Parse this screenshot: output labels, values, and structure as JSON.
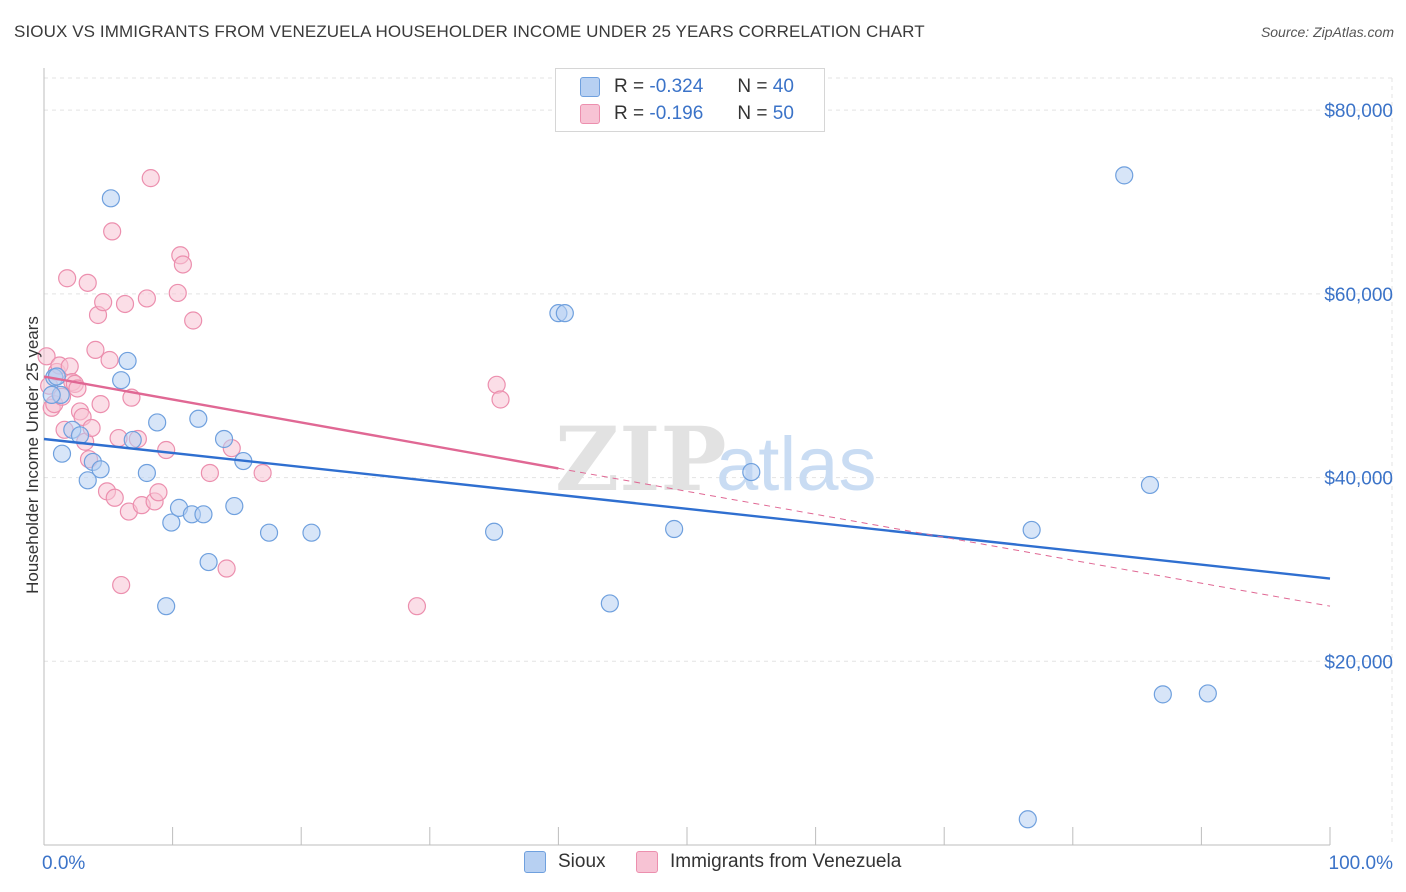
{
  "title": "SIOUX VS IMMIGRANTS FROM VENEZUELA HOUSEHOLDER INCOME UNDER 25 YEARS CORRELATION CHART",
  "source": "Source: ZipAtlas.com",
  "watermark": {
    "zip": "ZIP",
    "atlas": "atlas"
  },
  "legend": {
    "rows": [
      {
        "r_label": "R =",
        "r_value": "-0.324",
        "n_label": "N =",
        "n_value": "40"
      },
      {
        "r_label": "R =",
        "r_value": "-0.196",
        "n_label": "N =",
        "n_value": "50"
      }
    ]
  },
  "chart_data": {
    "type": "scatter",
    "title": "SIOUX VS IMMIGRANTS FROM VENEZUELA HOUSEHOLDER INCOME UNDER 25 YEARS CORRELATION CHART",
    "xlabel": "",
    "ylabel": "Householder Income Under 25 years",
    "xlim": [
      0,
      100
    ],
    "ylim": [
      0,
      83500
    ],
    "x_tick_labels": [
      "0.0%",
      "100.0%"
    ],
    "y_ticks": [
      20000,
      40000,
      60000,
      80000
    ],
    "y_tick_labels": [
      "$20,000",
      "$40,000",
      "$60,000",
      "$80,000"
    ],
    "grid": true,
    "series": [
      {
        "name": "Sioux",
        "color": "#6fa0de",
        "fill": "#b7d0f2",
        "line_color": "#2f6fd0",
        "trend": {
          "x0": 0,
          "y0": 44200,
          "x1": 100,
          "y1": 29000
        },
        "points": [
          [
            0.8,
            50900
          ],
          [
            1.3,
            49000
          ],
          [
            1.4,
            42600
          ],
          [
            2.2,
            45200
          ],
          [
            2.8,
            44600
          ],
          [
            3.4,
            39700
          ],
          [
            3.8,
            41700
          ],
          [
            4.4,
            40900
          ],
          [
            5.2,
            70400
          ],
          [
            6.0,
            50600
          ],
          [
            6.5,
            52700
          ],
          [
            6.9,
            44100
          ],
          [
            8.0,
            40500
          ],
          [
            8.8,
            46000
          ],
          [
            9.5,
            26000
          ],
          [
            9.9,
            35100
          ],
          [
            10.5,
            36700
          ],
          [
            11.5,
            36000
          ],
          [
            12.0,
            46400
          ],
          [
            12.4,
            36000
          ],
          [
            12.8,
            30800
          ],
          [
            14.0,
            44200
          ],
          [
            14.8,
            36900
          ],
          [
            15.5,
            41800
          ],
          [
            17.5,
            34000
          ],
          [
            20.8,
            34000
          ],
          [
            35.0,
            34100
          ],
          [
            40.0,
            57900
          ],
          [
            40.5,
            57900
          ],
          [
            44.0,
            26300
          ],
          [
            49.0,
            34400
          ],
          [
            55.0,
            40600
          ],
          [
            76.5,
            2800
          ],
          [
            76.8,
            34300
          ],
          [
            84.0,
            72900
          ],
          [
            86.0,
            39200
          ],
          [
            87.0,
            16400
          ],
          [
            90.5,
            16500
          ],
          [
            0.6,
            49000
          ],
          [
            1.0,
            51000
          ]
        ]
      },
      {
        "name": "Immigrants from Venezuela",
        "color": "#ec8fae",
        "fill": "#f7c3d4",
        "line_color": "#e06894",
        "trend": {
          "x0": 0,
          "y0": 51000,
          "x1": 40,
          "y1": 41000
        },
        "trend_dashed": {
          "x0": 40,
          "y0": 41000,
          "x1": 100,
          "y1": 26000
        },
        "points": [
          [
            0.2,
            53200
          ],
          [
            0.4,
            50000
          ],
          [
            0.6,
            47600
          ],
          [
            0.8,
            48000
          ],
          [
            1.0,
            51500
          ],
          [
            1.2,
            52200
          ],
          [
            1.4,
            48800
          ],
          [
            1.6,
            45200
          ],
          [
            1.8,
            61700
          ],
          [
            2.0,
            52100
          ],
          [
            2.2,
            50400
          ],
          [
            2.4,
            50200
          ],
          [
            2.6,
            49700
          ],
          [
            2.8,
            47200
          ],
          [
            3.0,
            46600
          ],
          [
            3.2,
            43900
          ],
          [
            3.4,
            61200
          ],
          [
            3.7,
            45400
          ],
          [
            4.0,
            53900
          ],
          [
            4.2,
            57700
          ],
          [
            4.4,
            48000
          ],
          [
            4.6,
            59100
          ],
          [
            4.9,
            38500
          ],
          [
            5.1,
            52800
          ],
          [
            5.3,
            66800
          ],
          [
            5.5,
            37800
          ],
          [
            5.8,
            44300
          ],
          [
            6.0,
            28300
          ],
          [
            6.3,
            58900
          ],
          [
            6.6,
            36300
          ],
          [
            6.8,
            48700
          ],
          [
            7.3,
            44200
          ],
          [
            7.6,
            37000
          ],
          [
            8.0,
            59500
          ],
          [
            8.3,
            72600
          ],
          [
            8.6,
            37400
          ],
          [
            8.9,
            38400
          ],
          [
            9.5,
            43000
          ],
          [
            10.4,
            60100
          ],
          [
            10.6,
            64200
          ],
          [
            10.8,
            63200
          ],
          [
            11.6,
            57100
          ],
          [
            12.9,
            40500
          ],
          [
            14.2,
            30100
          ],
          [
            14.6,
            43200
          ],
          [
            17.0,
            40500
          ],
          [
            29.0,
            26000
          ],
          [
            35.2,
            50100
          ],
          [
            35.5,
            48500
          ],
          [
            3.5,
            42000
          ]
        ]
      }
    ]
  }
}
